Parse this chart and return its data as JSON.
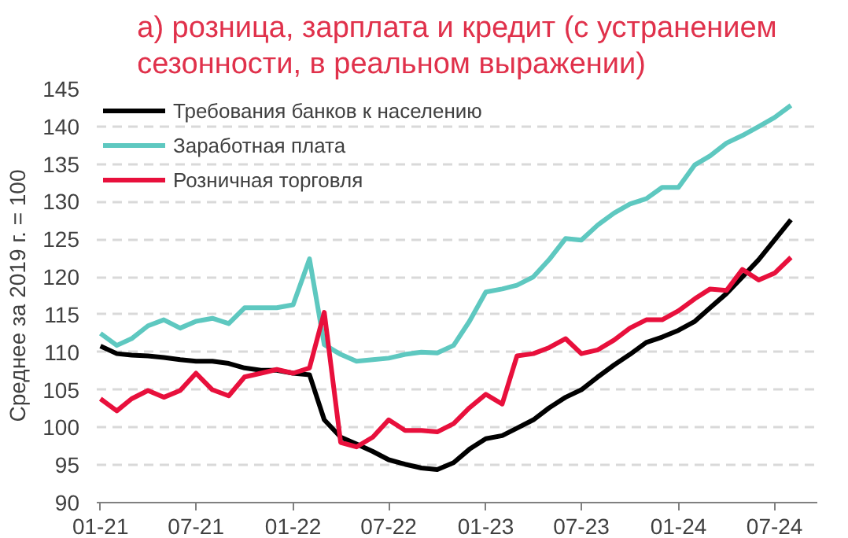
{
  "chart_data": {
    "type": "line",
    "title": "а) розница, зарплата и кредит (с устранением сезонности, в реальном выражении)",
    "ylabel": "Среднее за 2019 г. = 100",
    "x": [
      "2021-01",
      "2021-02",
      "2021-03",
      "2021-04",
      "2021-05",
      "2021-06",
      "2021-07",
      "2021-08",
      "2021-09",
      "2021-10",
      "2021-11",
      "2021-12",
      "2022-01",
      "2022-02",
      "2022-03",
      "2022-04",
      "2022-05",
      "2022-06",
      "2022-07",
      "2022-08",
      "2022-09",
      "2022-10",
      "2022-11",
      "2022-12",
      "2023-01",
      "2023-02",
      "2023-03",
      "2023-04",
      "2023-05",
      "2023-06",
      "2023-07",
      "2023-08",
      "2023-09",
      "2023-10",
      "2023-11",
      "2023-12",
      "2024-01",
      "2024-02",
      "2024-03",
      "2024-04",
      "2024-05",
      "2024-06",
      "2024-07",
      "2024-08"
    ],
    "series": [
      {
        "name": "Требования банков к населению",
        "color": "#000000",
        "values": [
          110.8,
          109.8,
          109.6,
          109.5,
          109.3,
          109.0,
          108.8,
          108.8,
          108.5,
          107.9,
          107.6,
          107.6,
          107.2,
          107.0,
          101.0,
          98.7,
          97.8,
          96.8,
          95.7,
          95.1,
          94.6,
          94.4,
          95.3,
          97.1,
          98.5,
          98.9,
          99.9,
          101.0,
          102.6,
          104.0,
          105.0,
          106.7,
          108.3,
          109.7,
          111.3,
          112.0,
          112.9,
          114.1,
          115.9,
          117.8,
          120.0,
          122.3,
          124.9,
          127.6
        ]
      },
      {
        "name": "Заработная плата",
        "color": "#5ec8c0",
        "values": [
          112.5,
          110.9,
          111.8,
          113.5,
          114.3,
          113.2,
          114.1,
          114.5,
          113.8,
          115.9,
          115.9,
          115.9,
          116.3,
          122.4,
          111.0,
          109.7,
          108.8,
          109.0,
          109.2,
          109.7,
          110.0,
          109.9,
          110.9,
          114.1,
          118.0,
          118.4,
          118.9,
          120.0,
          122.3,
          125.1,
          124.9,
          126.9,
          128.5,
          129.7,
          130.4,
          131.9,
          131.9,
          134.9,
          136.1,
          137.8,
          138.8,
          140.0,
          141.2,
          142.8
        ]
      },
      {
        "name": "Розничная торговля",
        "color": "#e8103c",
        "values": [
          103.8,
          102.2,
          103.8,
          104.9,
          104.0,
          104.9,
          107.2,
          105.0,
          104.2,
          106.7,
          107.2,
          107.7,
          107.2,
          107.9,
          115.3,
          98.0,
          97.4,
          98.7,
          101.0,
          99.6,
          99.6,
          99.4,
          100.5,
          102.6,
          104.4,
          103.1,
          109.5,
          109.8,
          110.6,
          111.8,
          109.8,
          110.3,
          111.6,
          113.2,
          114.3,
          114.3,
          115.5,
          117.1,
          118.4,
          118.2,
          121.0,
          119.6,
          120.5,
          122.6
        ]
      }
    ],
    "xlim": [
      "2020-12-25",
      "2024-09-20"
    ],
    "xticks": [
      {
        "value": "2021-01",
        "label": "01-21"
      },
      {
        "value": "2021-07",
        "label": "07-21"
      },
      {
        "value": "2022-01",
        "label": "01-22"
      },
      {
        "value": "2022-07",
        "label": "07-22"
      },
      {
        "value": "2023-01",
        "label": "01-23"
      },
      {
        "value": "2023-07",
        "label": "07-23"
      },
      {
        "value": "2024-01",
        "label": "01-24"
      },
      {
        "value": "2024-07",
        "label": "07-24"
      }
    ],
    "ylim": [
      90,
      145
    ],
    "yticks": [
      90,
      95,
      100,
      105,
      110,
      115,
      120,
      125,
      130,
      135,
      140,
      145
    ],
    "grid": "y",
    "legend": "top left",
    "line_style": "solid",
    "marker": "none"
  }
}
